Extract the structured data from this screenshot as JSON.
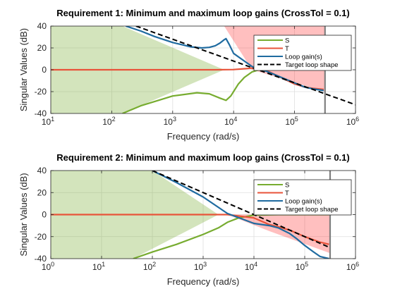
{
  "figure": {
    "background": "#ffffff"
  },
  "chart_data": [
    {
      "type": "line",
      "title": "Requirement 1: Minimum and maximum loop gains (CrossTol = 0.1)",
      "xlabel": "Frequency (rad/s)",
      "ylabel": "Singular Values (dB)",
      "xscale": "log",
      "xlim": [
        10,
        1000000
      ],
      "ylim": [
        -40,
        40
      ],
      "xticks": [
        10,
        100,
        1000,
        10000,
        100000,
        1000000
      ],
      "xtick_labels": [
        {
          "base": "10",
          "exp": "1"
        },
        {
          "base": "10",
          "exp": "2"
        },
        {
          "base": "10",
          "exp": "3"
        },
        {
          "base": "10",
          "exp": "4"
        },
        {
          "base": "10",
          "exp": "5"
        },
        {
          "base": "10",
          "exp": "6"
        }
      ],
      "yticks": [
        40,
        20,
        0,
        -20,
        -40
      ],
      "grid": true,
      "legend_position": "top-right",
      "vline": {
        "x": 316000,
        "color": "#7f7f7f"
      },
      "regions": [
        {
          "role": "min-gain-region",
          "color": "#77ac30",
          "opacity": 0.32,
          "points": [
            [
              10,
              40
            ],
            [
              10,
              -40
            ],
            [
              150,
              -40
            ],
            [
              7000,
              0
            ],
            [
              150,
              40
            ]
          ]
        },
        {
          "role": "max-gain-region",
          "color": "#ff0000",
          "opacity": 0.25,
          "points": [
            [
              20000,
              0
            ],
            [
              316000,
              -20
            ],
            [
              316000,
              40
            ],
            [
              7000,
              40
            ]
          ]
        }
      ],
      "series": [
        {
          "name": "S",
          "color": "#77ac30",
          "dash": false,
          "x": [
            150,
            300,
            1000,
            2500,
            4000,
            6000,
            7500,
            9000,
            12000,
            15000,
            20000,
            30000,
            50000,
            100000,
            300000
          ],
          "y": [
            -40,
            -33,
            -24,
            -21,
            -22,
            -26,
            -28,
            -24,
            -13,
            -7,
            -2,
            1,
            1.5,
            0.5,
            0
          ]
        },
        {
          "name": "T",
          "color": "#e8533a",
          "dash": false,
          "x": [
            10,
            100,
            1000,
            5000,
            10000,
            20000,
            30000,
            50000,
            100000,
            150000,
            200000,
            300000
          ],
          "y": [
            0,
            0,
            0,
            0,
            0.2,
            1.5,
            1,
            -5,
            -13,
            -16,
            -17,
            -18
          ]
        },
        {
          "name": "Loop gain(s)",
          "color": "#1f6ba0",
          "dash": false,
          "x": [
            170,
            300,
            500,
            1000,
            2000,
            3000,
            4000,
            5000,
            6000,
            7000,
            7500,
            8500,
            10000,
            15000,
            20000,
            30000,
            50000,
            100000,
            150000,
            200000,
            300000
          ],
          "y": [
            40,
            35.5,
            30.5,
            25,
            21,
            20,
            20.5,
            22,
            24.5,
            27.5,
            28.5,
            23,
            15,
            8,
            3,
            0,
            -5,
            -12,
            -16,
            -17.5,
            -19
          ]
        },
        {
          "name": "Target loop shape",
          "color": "#000000",
          "dash": true,
          "x": [
            250,
            1000000
          ],
          "y": [
            40,
            -32
          ]
        }
      ]
    },
    {
      "type": "line",
      "title": "Requirement 2: Minimum and maximum loop gains (CrossTol = 0.1)",
      "xlabel": "Frequency (rad/s)",
      "ylabel": "Singular Values (dB)",
      "xscale": "log",
      "xlim": [
        1,
        1000000
      ],
      "ylim": [
        -40,
        40
      ],
      "xticks": [
        1,
        10,
        100,
        1000,
        10000,
        100000,
        1000000
      ],
      "xtick_labels": [
        {
          "base": "10",
          "exp": "0"
        },
        {
          "base": "10",
          "exp": "1"
        },
        {
          "base": "10",
          "exp": "2"
        },
        {
          "base": "10",
          "exp": "3"
        },
        {
          "base": "10",
          "exp": "4"
        },
        {
          "base": "10",
          "exp": "5"
        },
        {
          "base": "10",
          "exp": "6"
        }
      ],
      "yticks": [
        40,
        20,
        0,
        -20,
        -40
      ],
      "grid": true,
      "legend_position": "top-right",
      "vline": {
        "x": 316000,
        "color": "#7f7f7f"
      },
      "regions": [
        {
          "role": "min-gain-region",
          "color": "#77ac30",
          "opacity": 0.32,
          "points": [
            [
              1,
              40
            ],
            [
              1,
              -40
            ],
            [
              42,
              -40
            ],
            [
              2000,
              0
            ],
            [
              100,
              40
            ]
          ]
        },
        {
          "role": "max-gain-region",
          "color": "#ff0000",
          "opacity": 0.25,
          "points": [
            [
              20000,
              -15
            ],
            [
              316000,
              -35
            ],
            [
              316000,
              0
            ],
            [
              3000,
              0
            ]
          ]
        }
      ],
      "series": [
        {
          "name": "S",
          "color": "#77ac30",
          "dash": false,
          "x": [
            42,
            100,
            300,
            1000,
            2000,
            3000,
            5000,
            10000,
            30000,
            100000,
            300000
          ],
          "y": [
            -40,
            -34,
            -27,
            -18,
            -12,
            -7,
            -3,
            -0.5,
            0,
            0,
            0
          ]
        },
        {
          "name": "T",
          "color": "#e8533a",
          "dash": false,
          "x": [
            1,
            10,
            100,
            1000,
            3000,
            10000,
            20000,
            30000,
            50000,
            100000,
            200000,
            300000
          ],
          "y": [
            0,
            0,
            0,
            0,
            0,
            -3,
            -9,
            -11,
            -14,
            -20,
            -25,
            -27
          ]
        },
        {
          "name": "Loop gain(s)",
          "color": "#1f6ba0",
          "dash": false,
          "x": [
            100,
            300,
            1000,
            3000,
            10000,
            20000,
            30000,
            50000,
            70000,
            100000,
            150000,
            200000,
            300000
          ],
          "y": [
            40,
            29,
            16,
            1,
            -8,
            -10,
            -12,
            -17,
            -22,
            -28,
            -34,
            -38,
            -40
          ]
        },
        {
          "name": "Target loop shape",
          "color": "#000000",
          "dash": true,
          "x": [
            100,
            316000
          ],
          "y": [
            40,
            -30
          ]
        }
      ]
    }
  ]
}
